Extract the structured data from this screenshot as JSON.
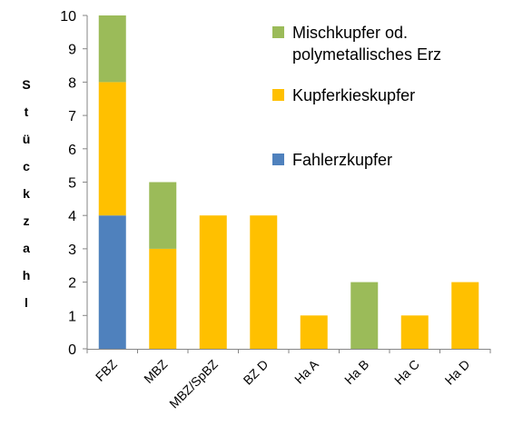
{
  "chart_data": {
    "type": "bar",
    "stacked": true,
    "categories": [
      "FBZ",
      "MBZ",
      "MBZ/SpBZ",
      "BZ D",
      "Ha A",
      "Ha B",
      "Ha C",
      "Ha D"
    ],
    "series": [
      {
        "name": "Fahlerzkupfer",
        "color": "#4f81bd",
        "values": [
          4,
          0,
          0,
          0,
          0,
          0,
          0,
          0
        ]
      },
      {
        "name": "Kupferkieskupfer",
        "color": "#ffc000",
        "values": [
          4,
          3,
          4,
          4,
          1,
          0,
          1,
          2
        ]
      },
      {
        "name": "Mischkupfer od.\npolymetallisches Erz",
        "color": "#9bbb59",
        "values": [
          2,
          2,
          0,
          0,
          0,
          2,
          0,
          0
        ]
      }
    ],
    "ylabel": "Stückzahl",
    "ylabel_letters": [
      "S",
      "t",
      "ü",
      "c",
      "k",
      "z",
      "a",
      "h",
      "l"
    ],
    "ylim": [
      0,
      10
    ],
    "yticks": [
      "0",
      "1",
      "2",
      "3",
      "4",
      "5",
      "6",
      "7",
      "8",
      "9",
      "10"
    ],
    "grid": false,
    "legend_placement": "top-right",
    "legend_order": [
      "Mischkupfer od.\npolymetallisches Erz",
      "Kupferkieskupfer",
      "Fahlerzkupfer"
    ]
  }
}
